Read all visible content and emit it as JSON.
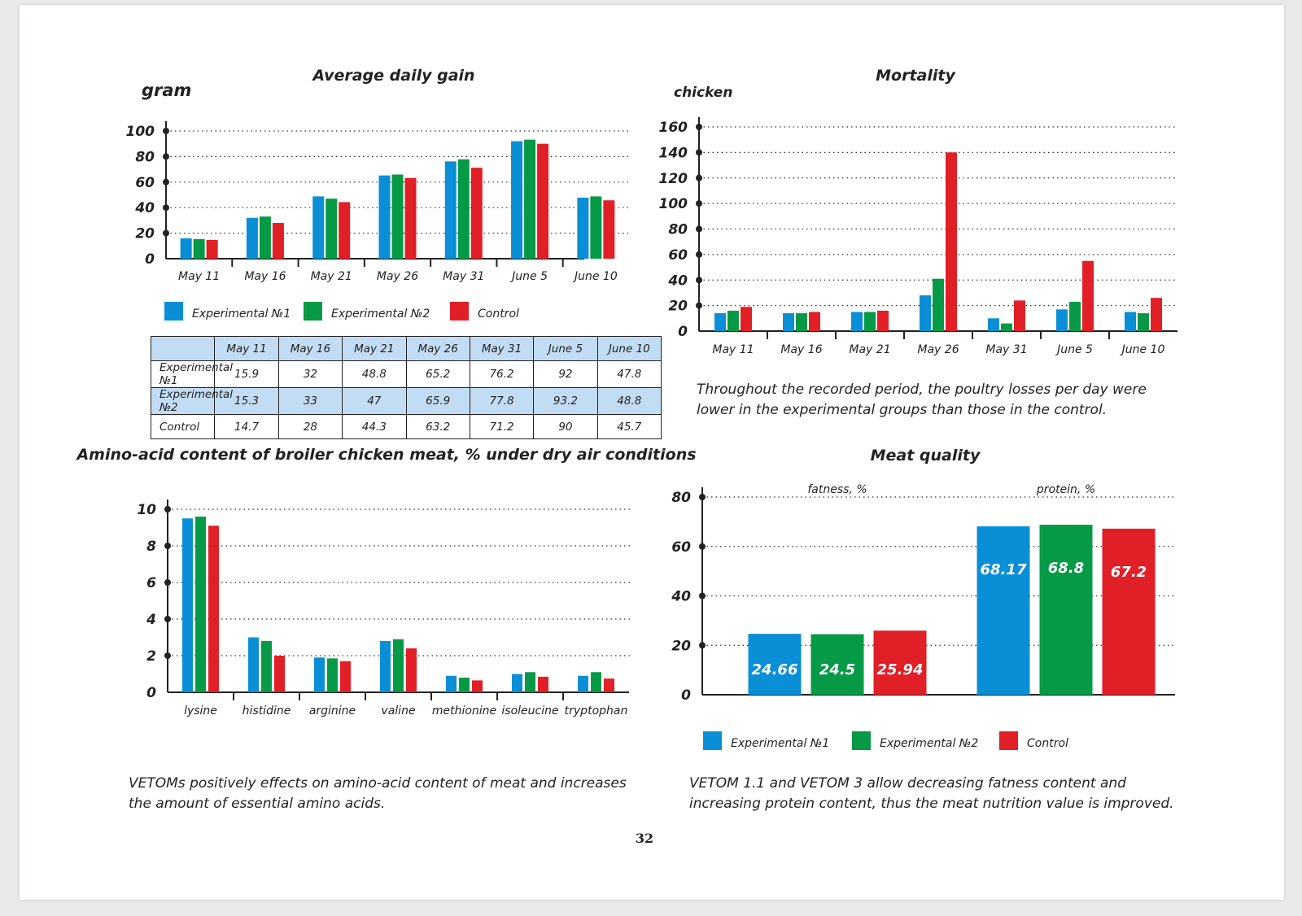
{
  "page_number": "32",
  "colors": {
    "exp1": "#0a8fd6",
    "exp2": "#079a46",
    "control": "#e11f26",
    "table_highlight": "#c2dcf3"
  },
  "legend": [
    "Experimental №1",
    "Experimental №2",
    "Control"
  ],
  "texts": {
    "mortality_note": [
      "Throughout the recorded period, the poultry losses per day were",
      "lower in the experimental groups than those in the control."
    ],
    "amino_note": [
      "VETOMs positively effects on amino-acid content of meat and increases",
      "the amount of essential amino acids."
    ],
    "meat_note": [
      "VETOM 1.1 and VETOM 3 allow decreasing fatness content and",
      "increasing protein content, thus the meat nutrition value is improved."
    ]
  },
  "chart_data": [
    {
      "id": "adg",
      "type": "bar",
      "title": "Average daily gain",
      "ylabel": "gram",
      "ylim": [
        0,
        100
      ],
      "yticks": [
        0,
        20,
        40,
        60,
        80,
        100
      ],
      "categories": [
        "May 11",
        "May 16",
        "May 21",
        "May 26",
        "May 31",
        "June 5",
        "June 10"
      ],
      "series": [
        {
          "name": "Experimental №1",
          "values": [
            15.9,
            32,
            48.8,
            65.2,
            76.2,
            92,
            47.8
          ]
        },
        {
          "name": "Experimental №2",
          "values": [
            15.3,
            33,
            47,
            65.9,
            77.8,
            93.2,
            48.8
          ]
        },
        {
          "name": "Control",
          "values": [
            14.7,
            28,
            44.3,
            63.2,
            71.2,
            90,
            45.7
          ]
        }
      ],
      "grid": true,
      "legend": "bottom"
    },
    {
      "id": "mortality",
      "type": "bar",
      "title": "Mortality",
      "ylabel": "chicken",
      "ylim": [
        0,
        160
      ],
      "yticks": [
        0,
        20,
        40,
        60,
        80,
        100,
        120,
        140,
        160
      ],
      "categories": [
        "May 11",
        "May 16",
        "May 21",
        "May 26",
        "May 31",
        "June 5",
        "June 10"
      ],
      "series": [
        {
          "name": "Experimental №1",
          "values": [
            14,
            14,
            15,
            28,
            10,
            17,
            15
          ]
        },
        {
          "name": "Experimental №2",
          "values": [
            16,
            14,
            15,
            41,
            6,
            23,
            14
          ]
        },
        {
          "name": "Control",
          "values": [
            19,
            15,
            16,
            140,
            24,
            55,
            26
          ]
        }
      ],
      "grid": true
    },
    {
      "id": "amino",
      "type": "bar",
      "title": "Amino-acid content of broiler chicken meat, % under dry air conditions",
      "ylim": [
        0,
        10
      ],
      "yticks": [
        0,
        2,
        4,
        6,
        8,
        10
      ],
      "categories": [
        "lysine",
        "histidine",
        "arginine",
        "valine",
        "methionine",
        "isoleucine",
        "tryptophan"
      ],
      "series": [
        {
          "name": "Experimental №1",
          "values": [
            9.5,
            3.0,
            1.9,
            2.8,
            0.9,
            1.0,
            0.9
          ]
        },
        {
          "name": "Experimental №2",
          "values": [
            9.6,
            2.8,
            1.85,
            2.9,
            0.8,
            1.1,
            1.1
          ]
        },
        {
          "name": "Control",
          "values": [
            9.1,
            2.0,
            1.7,
            2.4,
            0.65,
            0.85,
            0.75
          ]
        }
      ],
      "grid": true
    },
    {
      "id": "meat",
      "type": "bar",
      "title": "Meat quality",
      "ylim": [
        0,
        80
      ],
      "yticks": [
        0,
        20,
        40,
        60,
        80
      ],
      "categories": [
        "fatness, %",
        "protein, %"
      ],
      "series": [
        {
          "name": "Experimental №1",
          "values": [
            24.66,
            68.17
          ],
          "labels": [
            "24.66",
            "68.17"
          ]
        },
        {
          "name": "Experimental №2",
          "values": [
            24.5,
            68.8
          ],
          "labels": [
            "24.5",
            "68.8"
          ]
        },
        {
          "name": "Control",
          "values": [
            25.94,
            67.2
          ],
          "labels": [
            "25.94",
            "67.2"
          ]
        }
      ],
      "grid": true,
      "legend": "bottom"
    }
  ]
}
